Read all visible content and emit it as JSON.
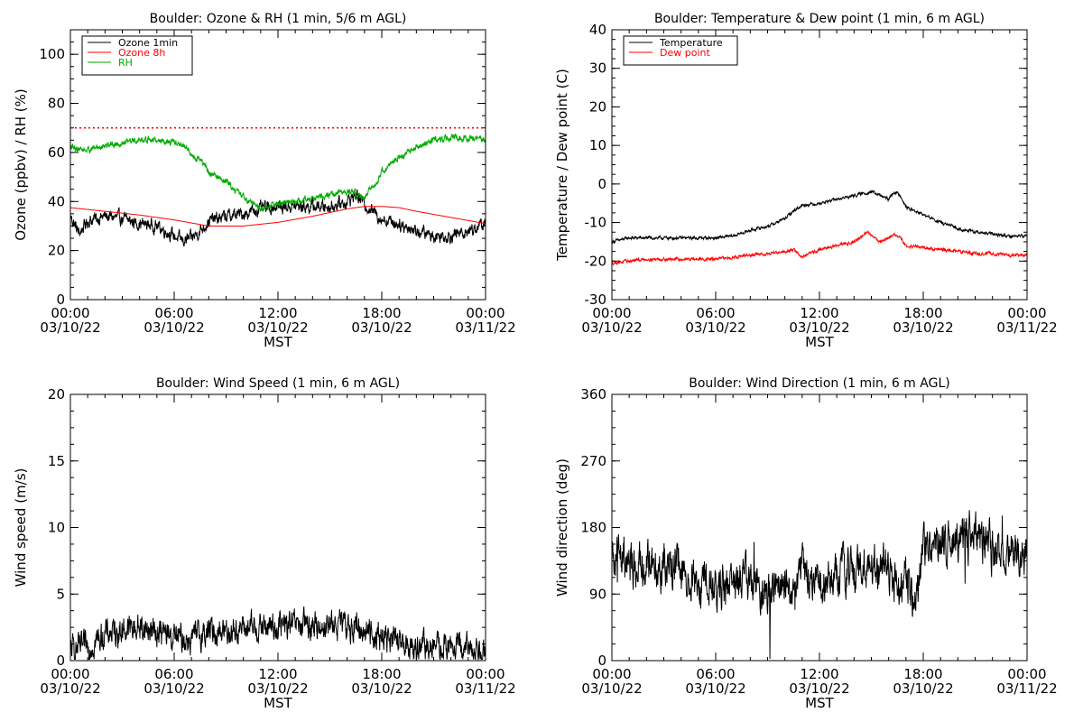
{
  "chart_data": [
    {
      "type": "line",
      "title": "Boulder: Ozone & RH (1 min, 5/6 m AGL)",
      "xlabel": "MST",
      "ylabel": "Ozone (ppbv) / RH (%)",
      "xlim_hours": [
        0,
        24
      ],
      "ylim": [
        0,
        110
      ],
      "yticks": [
        0,
        20,
        40,
        60,
        80,
        100
      ],
      "xticks": [
        {
          "time": "00:00",
          "date": "03/10/22"
        },
        {
          "time": "06:00",
          "date": "03/10/22"
        },
        {
          "time": "12:00",
          "date": "03/10/22"
        },
        {
          "time": "18:00",
          "date": "03/10/22"
        },
        {
          "time": "00:00",
          "date": "03/11/22"
        }
      ],
      "legend_position": "top-left",
      "reference_line": {
        "y": 70,
        "style": "dotted",
        "color": "#ff0000"
      },
      "series": [
        {
          "name": "Ozone 1min",
          "color": "#000000",
          "noise": 2,
          "x": [
            0,
            0.5,
            1,
            2,
            3,
            4,
            5,
            6,
            6.5,
            7,
            7.5,
            8,
            9,
            10,
            11,
            12,
            13,
            14,
            15,
            16,
            16.5,
            17,
            17.5,
            18,
            19,
            20,
            21,
            22,
            23,
            24
          ],
          "y": [
            34,
            27,
            32,
            34,
            33,
            31,
            30,
            26,
            24,
            25,
            28,
            32,
            34,
            35,
            37,
            38,
            38,
            38,
            38,
            40,
            43,
            39,
            36,
            33,
            31,
            28,
            26,
            26,
            28,
            31
          ]
        },
        {
          "name": "Ozone 8h",
          "color": "#ff0000",
          "noise": 0,
          "x": [
            0,
            2,
            4,
            6,
            8,
            10,
            12,
            14,
            16,
            17,
            18,
            19,
            20,
            22,
            24
          ],
          "y": [
            37.5,
            36,
            34.5,
            32.5,
            30,
            30,
            31.5,
            34,
            37,
            38,
            38,
            37.5,
            36,
            33.5,
            31
          ]
        },
        {
          "name": "RH",
          "color": "#00aa00",
          "noise": 1,
          "x": [
            0,
            1,
            2,
            3,
            4,
            5,
            6,
            6.8,
            7,
            7.5,
            8,
            9,
            10,
            11,
            12,
            13,
            14,
            15,
            16,
            17,
            17.5,
            18,
            19,
            20,
            21,
            22,
            23,
            24
          ],
          "y": [
            62,
            61,
            63,
            64,
            65,
            65,
            64,
            62,
            58,
            57,
            52,
            48,
            42,
            37,
            39,
            40,
            41,
            43,
            44,
            42,
            46,
            52,
            58,
            62,
            65,
            66,
            66,
            65
          ]
        }
      ]
    },
    {
      "type": "line",
      "title": "Boulder: Temperature & Dew point (1 min, 6 m AGL)",
      "xlabel": "MST",
      "ylabel": "Temperature / Dew point (C)",
      "xlim_hours": [
        0,
        24
      ],
      "ylim": [
        -30,
        40
      ],
      "yticks": [
        -30,
        -20,
        -10,
        0,
        10,
        20,
        30,
        40
      ],
      "xticks": [
        {
          "time": "00:00",
          "date": "03/10/22"
        },
        {
          "time": "06:00",
          "date": "03/10/22"
        },
        {
          "time": "12:00",
          "date": "03/10/22"
        },
        {
          "time": "18:00",
          "date": "03/10/22"
        },
        {
          "time": "00:00",
          "date": "03/11/22"
        }
      ],
      "legend_position": "top-left",
      "series": [
        {
          "name": "Temperature",
          "color": "#000000",
          "noise": 0.3,
          "x": [
            0,
            1,
            2,
            4,
            6,
            7,
            8,
            9,
            10,
            10.5,
            11,
            12,
            13,
            14,
            15,
            15.5,
            16,
            16.3,
            16.7,
            17,
            18,
            19,
            20,
            21,
            22,
            23,
            24
          ],
          "y": [
            -15,
            -14,
            -14,
            -14,
            -14,
            -13.5,
            -12,
            -11,
            -9,
            -7,
            -5.5,
            -5,
            -4,
            -3,
            -2,
            -3,
            -4,
            -2,
            -3,
            -6,
            -8,
            -10,
            -11.5,
            -12.5,
            -13,
            -13.5,
            -13.5
          ]
        },
        {
          "name": "Dew point",
          "color": "#ff0000",
          "noise": 0.3,
          "x": [
            0,
            1,
            2,
            4,
            6,
            7,
            8,
            9,
            10,
            10.5,
            11,
            12,
            13,
            14,
            14.8,
            15.5,
            16,
            16.3,
            16.8,
            17,
            18,
            19,
            20,
            21,
            22,
            23,
            24
          ],
          "y": [
            -20.5,
            -20,
            -19.5,
            -19.5,
            -19.5,
            -19,
            -18.5,
            -18,
            -17.5,
            -17,
            -19,
            -17,
            -16,
            -15,
            -12.5,
            -15,
            -14,
            -13,
            -14.5,
            -16,
            -16.5,
            -17,
            -17.5,
            -18,
            -18,
            -18.5,
            -18.5
          ]
        }
      ]
    },
    {
      "type": "line",
      "title": "Boulder: Wind Speed (1 min, 6 m AGL)",
      "xlabel": "MST",
      "ylabel": "Wind speed (m/s)",
      "xlim_hours": [
        0,
        24
      ],
      "ylim": [
        0,
        20
      ],
      "yticks": [
        0,
        5,
        10,
        15,
        20
      ],
      "xticks": [
        {
          "time": "00:00",
          "date": "03/10/22"
        },
        {
          "time": "06:00",
          "date": "03/10/22"
        },
        {
          "time": "12:00",
          "date": "03/10/22"
        },
        {
          "time": "18:00",
          "date": "03/10/22"
        },
        {
          "time": "00:00",
          "date": "03/11/22"
        }
      ],
      "series": [
        {
          "name": "",
          "color": "#000000",
          "noise": 0.8,
          "x": [
            0,
            1,
            1.5,
            2,
            3,
            4,
            5,
            6,
            7,
            8,
            9,
            10,
            11,
            12,
            13,
            14,
            15,
            16,
            17,
            18,
            19,
            20,
            21,
            22,
            23,
            24
          ],
          "y": [
            0.8,
            1,
            1.5,
            2,
            2.3,
            2.5,
            2.2,
            1.7,
            1.6,
            2.2,
            2.3,
            2.4,
            2.5,
            2.6,
            2.6,
            2.6,
            2.7,
            2.6,
            2.3,
            1.8,
            1.3,
            1,
            1,
            1,
            0.9,
            0.9
          ]
        }
      ]
    },
    {
      "type": "line",
      "title": "Boulder: Wind Direction (1 min, 6 m AGL)",
      "xlabel": "MST",
      "ylabel": "Wind direction (deg)",
      "xlim_hours": [
        0,
        24
      ],
      "ylim": [
        0,
        360
      ],
      "yticks": [
        0,
        90,
        180,
        270,
        360
      ],
      "xticks": [
        {
          "time": "00:00",
          "date": "03/10/22"
        },
        {
          "time": "06:00",
          "date": "03/10/22"
        },
        {
          "time": "12:00",
          "date": "03/10/22"
        },
        {
          "time": "18:00",
          "date": "03/10/22"
        },
        {
          "time": "00:00",
          "date": "03/11/22"
        }
      ],
      "series": [
        {
          "name": "",
          "color": "#000000",
          "noise": 22,
          "x": [
            0,
            0.5,
            1,
            2,
            3,
            4,
            5,
            6,
            7,
            8,
            9,
            9.5,
            10,
            11,
            12,
            13,
            14,
            15,
            16,
            16.5,
            17,
            17.5,
            18,
            19,
            20,
            21,
            22,
            23,
            24
          ],
          "y": [
            130,
            145,
            125,
            130,
            130,
            125,
            105,
            95,
            105,
            110,
            85,
            95,
            100,
            120,
            105,
            115,
            125,
            125,
            130,
            100,
            110,
            80,
            150,
            160,
            165,
            165,
            150,
            140,
            145
          ]
        }
      ]
    }
  ]
}
